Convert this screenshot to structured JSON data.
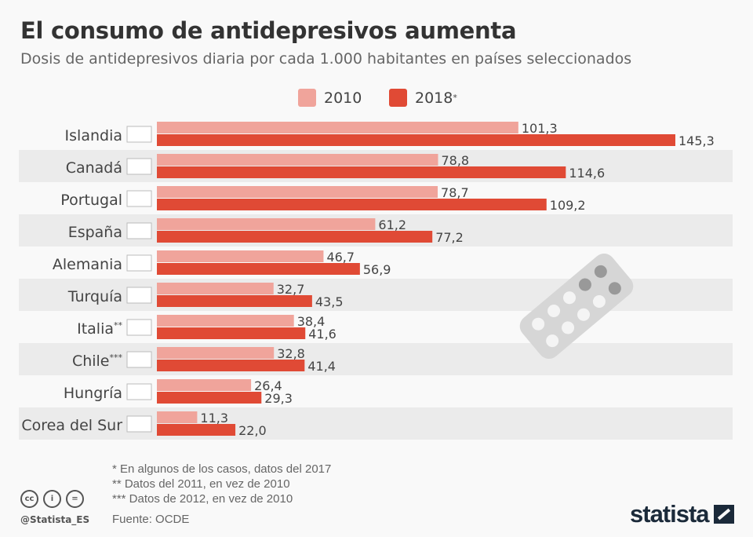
{
  "title": "El consumo de antidepresivos aumenta",
  "subtitle": "Dosis de antidepresivos diaria por cada 1.000 habitantes en países seleccionados",
  "legend": [
    {
      "label": "2010",
      "color": "#f0a49b"
    },
    {
      "label": "2018",
      "sup": "*",
      "color": "#e04a35"
    }
  ],
  "chart_data": {
    "type": "bar",
    "orientation": "horizontal",
    "categories": [
      "Islandia",
      "Canadá",
      "Portugal",
      "España",
      "Alemania",
      "Turquía",
      "Italia",
      "Chile",
      "Hungría",
      "Corea del Sur"
    ],
    "category_marks": [
      "",
      "",
      "",
      "",
      "",
      "",
      "**",
      "***",
      "",
      ""
    ],
    "series": [
      {
        "name": "2010",
        "color": "#f0a49b",
        "values": [
          101.3,
          78.8,
          78.7,
          61.2,
          46.7,
          32.7,
          38.4,
          32.8,
          26.4,
          11.3
        ],
        "labels": [
          "101,3",
          "78,8",
          "78,7",
          "61,2",
          "46,7",
          "32,7",
          "38,4",
          "32,8",
          "26,4",
          "11,3"
        ]
      },
      {
        "name": "2018*",
        "color": "#e04a35",
        "values": [
          145.3,
          114.6,
          109.2,
          77.2,
          56.9,
          43.5,
          41.6,
          41.4,
          29.3,
          22.0
        ],
        "labels": [
          "145,3",
          "114,6",
          "109,2",
          "77,2",
          "56,9",
          "43,5",
          "41,6",
          "41,4",
          "29,3",
          "22,0"
        ]
      }
    ],
    "xlim": [
      0,
      150
    ],
    "grid": false,
    "legend_position": "top"
  },
  "footnotes": [
    "*     En algunos de los casos, datos del 2017",
    "**   Datos del 2011, en vez de 2010",
    "*** Datos de 2012, en vez de 2010"
  ],
  "source": "Fuente: OCDE",
  "handle": "@Statista_ES",
  "cc_icons": [
    "cc",
    "by",
    "nd"
  ],
  "brand": "statista"
}
